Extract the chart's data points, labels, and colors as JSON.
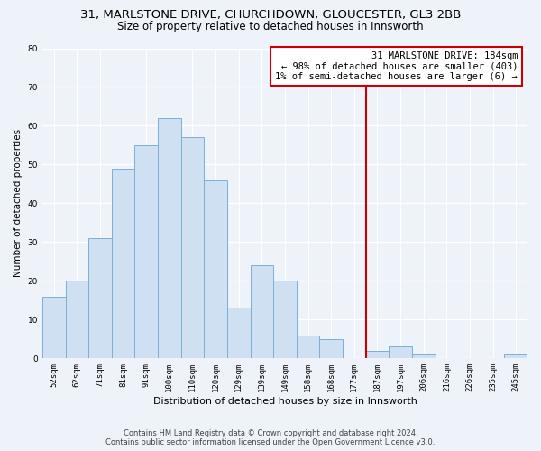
{
  "title1": "31, MARLSTONE DRIVE, CHURCHDOWN, GLOUCESTER, GL3 2BB",
  "title2": "Size of property relative to detached houses in Innsworth",
  "xlabel": "Distribution of detached houses by size in Innsworth",
  "ylabel": "Number of detached properties",
  "bar_labels": [
    "52sqm",
    "62sqm",
    "71sqm",
    "81sqm",
    "91sqm",
    "100sqm",
    "110sqm",
    "120sqm",
    "129sqm",
    "139sqm",
    "149sqm",
    "158sqm",
    "168sqm",
    "177sqm",
    "187sqm",
    "197sqm",
    "206sqm",
    "216sqm",
    "226sqm",
    "235sqm",
    "245sqm"
  ],
  "bar_values": [
    16,
    20,
    31,
    49,
    55,
    62,
    57,
    46,
    13,
    24,
    20,
    6,
    5,
    0,
    2,
    3,
    1,
    0,
    0,
    0,
    1
  ],
  "bar_color": "#cfe0f2",
  "bar_edge_color": "#7bafd4",
  "background_color": "#eef2f9",
  "grid_color": "#ffffff",
  "vline_color": "#cc0000",
  "annotation_title": "31 MARLSTONE DRIVE: 184sqm",
  "annotation_line1": "← 98% of detached houses are smaller (403)",
  "annotation_line2": "1% of semi-detached houses are larger (6) →",
  "annotation_box_color": "#ffffff",
  "annotation_border_color": "#cc0000",
  "ylim": [
    0,
    80
  ],
  "yticks": [
    0,
    10,
    20,
    30,
    40,
    50,
    60,
    70,
    80
  ],
  "footnote1": "Contains HM Land Registry data © Crown copyright and database right 2024.",
  "footnote2": "Contains public sector information licensed under the Open Government Licence v3.0.",
  "title1_fontsize": 9.5,
  "title2_fontsize": 8.5,
  "xlabel_fontsize": 8,
  "ylabel_fontsize": 7.5,
  "tick_fontsize": 6.5,
  "annotation_fontsize": 7.5,
  "footnote_fontsize": 6
}
